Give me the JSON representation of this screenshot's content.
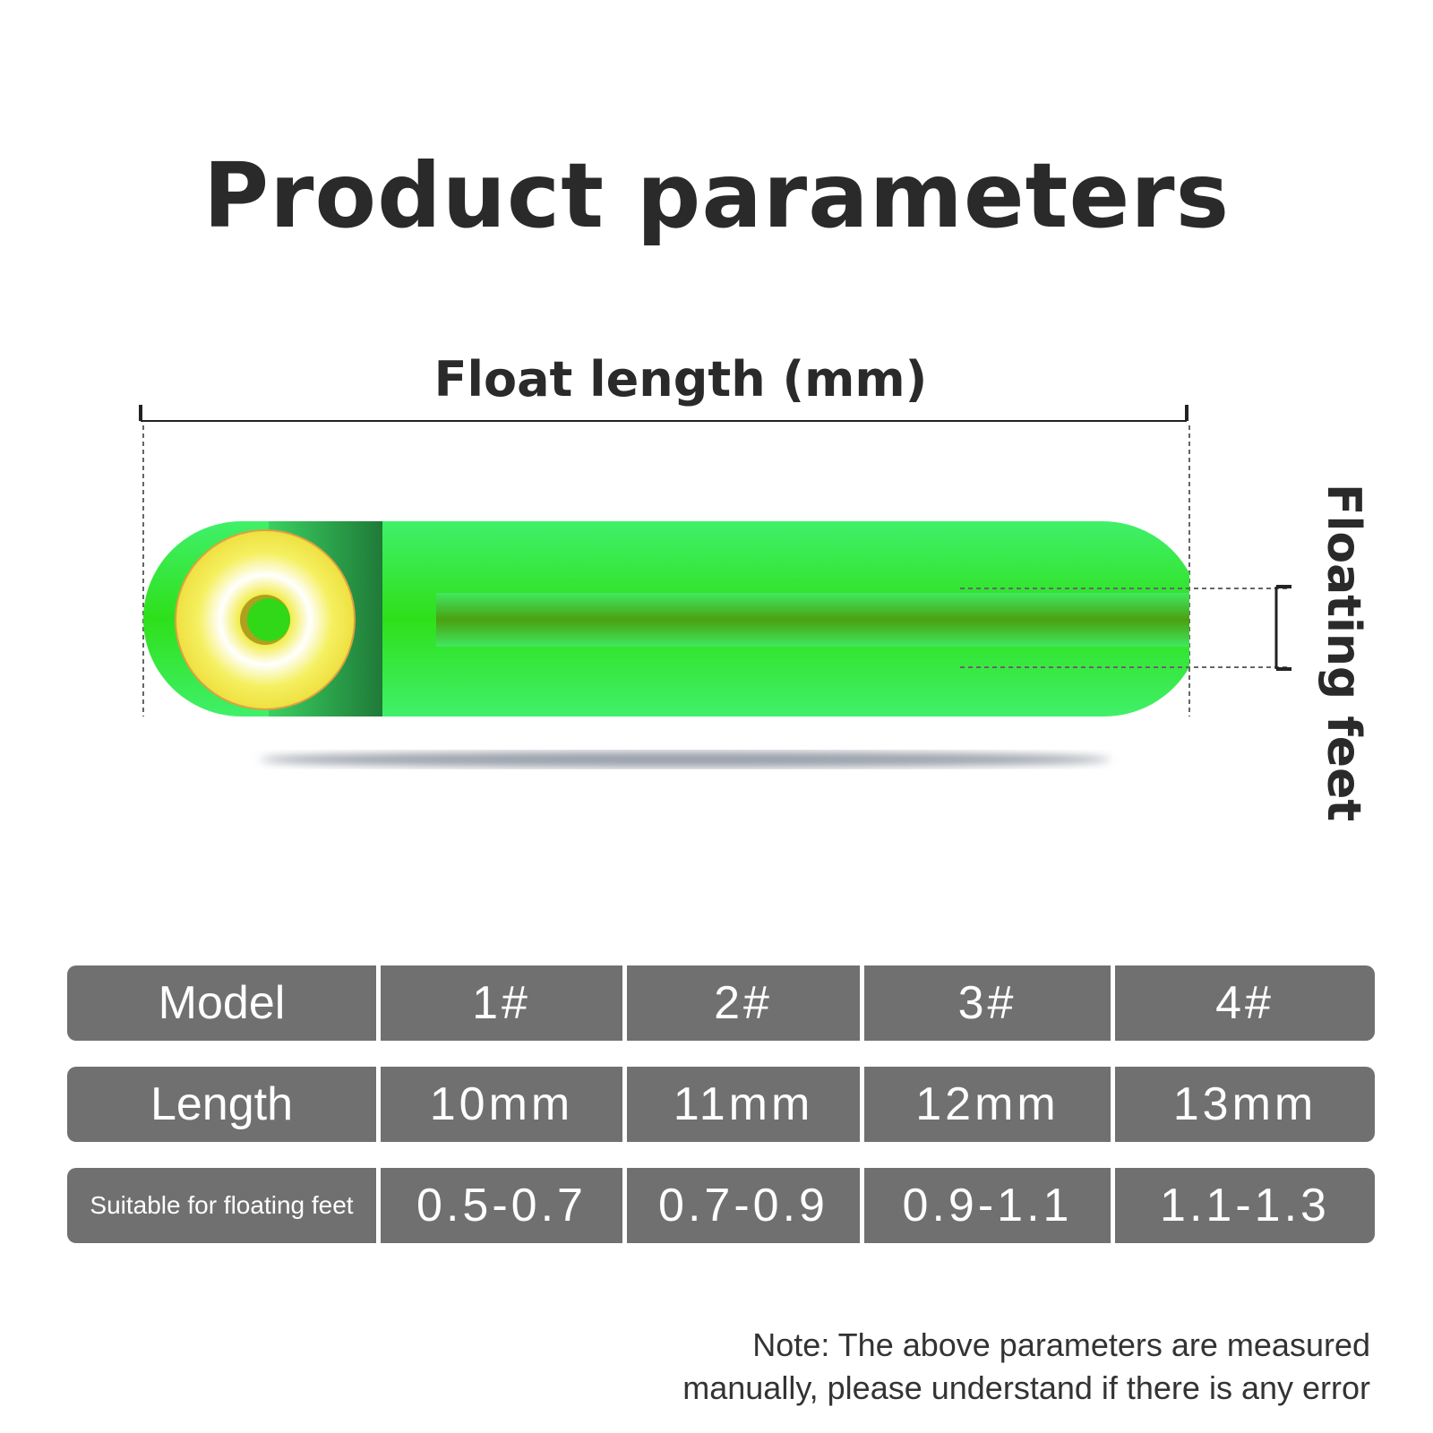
{
  "title": "Product parameters",
  "diagram": {
    "float_length_label": "Float length (mm)",
    "floating_feet_label": "Floating feet",
    "colors": {
      "body": "#3ff06a",
      "ring": "#f2ee4a",
      "shadow": "#9aa0aa"
    }
  },
  "table": {
    "rows": [
      {
        "header": "Model",
        "values": [
          "1#",
          "2#",
          "3#",
          "4#"
        ]
      },
      {
        "header": "Length",
        "values": [
          "10mm",
          "11mm",
          "12mm",
          "13mm"
        ]
      },
      {
        "header": "Suitable for floating feet",
        "values": [
          "0.5-0.7",
          "0.7-0.9",
          "0.9-1.1",
          "1.1-1.3"
        ]
      }
    ]
  },
  "note": {
    "line1": "Note: The above parameters are measured",
    "line2": "manually, please understand if there is any error"
  }
}
